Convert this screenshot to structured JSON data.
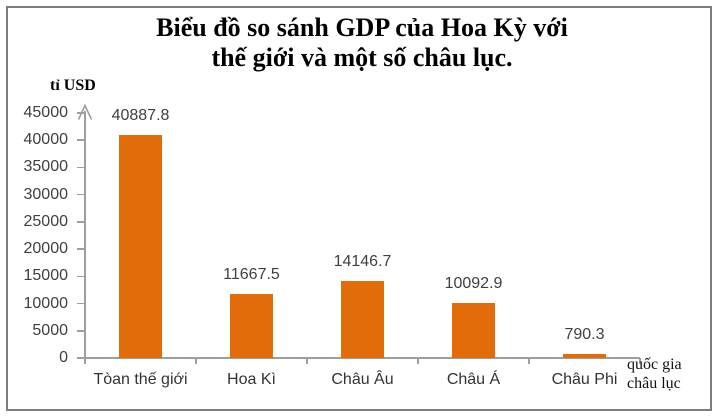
{
  "title": {
    "line1": "Biểu đồ so sánh GDP của Hoa Kỳ với",
    "line2": "thế giới và một số châu lục."
  },
  "axes": {
    "y_unit": "tỉ USD",
    "x_unit_line1": "quốc gia",
    "x_unit_line2": "châu lục"
  },
  "colors": {
    "bar": "#E36C0A",
    "axis": "#9E9E9E",
    "tick_label": "#3F3F3F",
    "title_text": "#000000",
    "frame_border": "#7D7D7D"
  },
  "chart_data": {
    "type": "bar",
    "title": "Biểu đồ so sánh GDP của Hoa Kỳ với thế giới và một số châu lục.",
    "categories": [
      "Tòan thế giới",
      "Hoa Kì",
      "Châu Âu",
      "Châu Á",
      "Châu Phi"
    ],
    "values": [
      40887.8,
      11667.5,
      14146.7,
      10092.9,
      790.3
    ],
    "value_labels": [
      "40887.8",
      "11667.5",
      "14146.7",
      "10092.9",
      "790.3"
    ],
    "xlabel": "quốc gia châu lục",
    "ylabel": "tỉ USD",
    "ylim": [
      0,
      45000
    ],
    "ytick_step": 5000,
    "yticks": [
      0,
      5000,
      10000,
      15000,
      20000,
      25000,
      30000,
      35000,
      40000,
      45000
    ],
    "grid": false,
    "legend": false,
    "bar_color": "#E36C0A"
  }
}
